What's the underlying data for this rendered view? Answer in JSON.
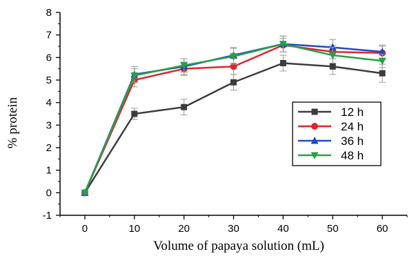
{
  "chart_data": {
    "type": "line",
    "xlabel": "Volume of papaya solution (mL)",
    "ylabel": "% protein",
    "x": [
      0,
      10,
      20,
      30,
      40,
      50,
      60
    ],
    "xlim": [
      -5,
      65
    ],
    "ylim": [
      -1,
      8
    ],
    "xticks": [
      "0",
      "10",
      "20",
      "30",
      "40",
      "50",
      "60"
    ],
    "yticks": [
      "-1",
      "0",
      "1",
      "2",
      "3",
      "4",
      "5",
      "6",
      "7",
      "8"
    ],
    "grid": false,
    "legend_position": "center-right",
    "series": [
      {
        "name": "12 h",
        "color": "#3c3c3c",
        "marker": "square",
        "values": [
          0,
          3.5,
          3.8,
          4.9,
          5.75,
          5.6,
          5.3
        ],
        "errors": [
          0.05,
          0.25,
          0.35,
          0.35,
          0.35,
          0.35,
          0.4
        ]
      },
      {
        "name": "24 h",
        "color": "#e0262b",
        "marker": "circle",
        "values": [
          0,
          5.0,
          5.5,
          5.6,
          6.55,
          6.25,
          6.2
        ],
        "errors": [
          0.05,
          0.3,
          0.3,
          0.35,
          0.3,
          0.3,
          0.3
        ]
      },
      {
        "name": "36 h",
        "color": "#1f49c7",
        "marker": "triangle-up",
        "values": [
          0,
          5.25,
          5.6,
          6.1,
          6.6,
          6.45,
          6.25
        ],
        "errors": [
          0.05,
          0.35,
          0.35,
          0.35,
          0.35,
          0.35,
          0.3
        ]
      },
      {
        "name": "48 h",
        "color": "#27a046",
        "marker": "triangle-down",
        "values": [
          0,
          5.2,
          5.65,
          6.05,
          6.6,
          6.1,
          5.85
        ],
        "errors": [
          0.05,
          0.3,
          0.3,
          0.35,
          0.35,
          0.35,
          0.3
        ]
      }
    ]
  }
}
